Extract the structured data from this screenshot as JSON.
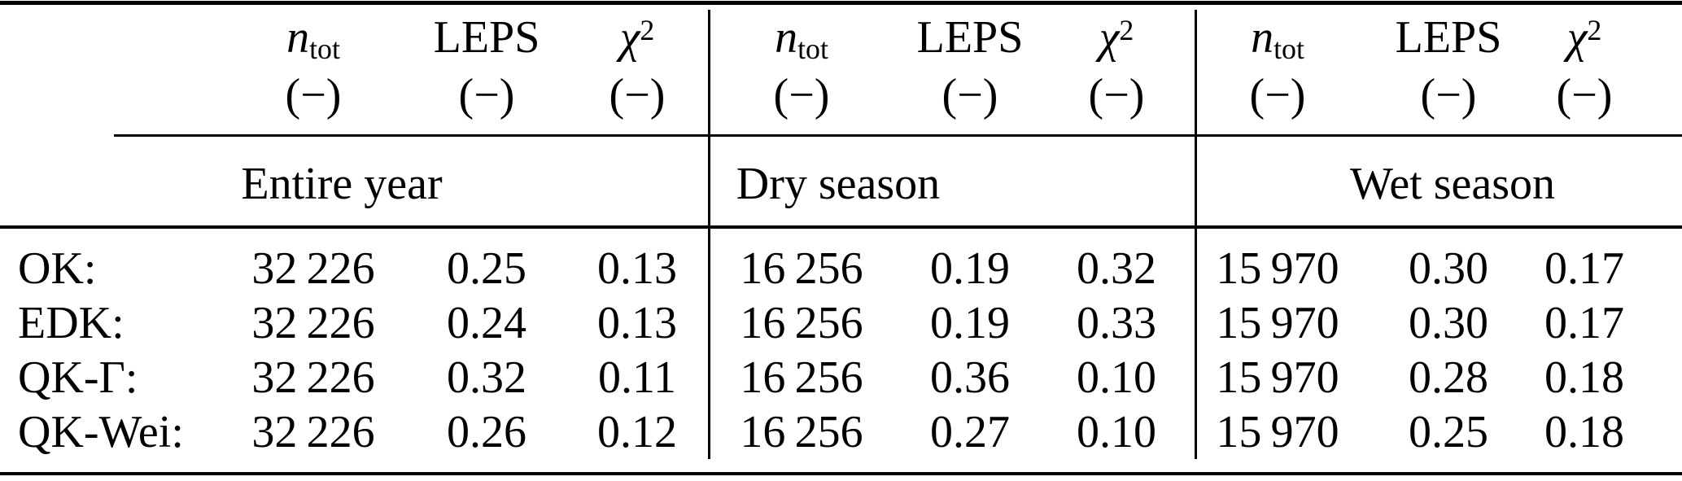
{
  "page": {
    "background": "#ffffff",
    "text_color": "#000000",
    "rule_color": "#000000"
  },
  "table": {
    "groups": [
      {
        "season": "Entire year",
        "cols": [
          {
            "base": "n",
            "sub": "tot",
            "unit": "(−)"
          },
          {
            "label": "LEPS",
            "unit": "(−)"
          },
          {
            "base": "χ",
            "sup": "2",
            "unit": "(−)"
          }
        ]
      },
      {
        "season": "Dry season",
        "cols": [
          {
            "base": "n",
            "sub": "tot",
            "unit": "(−)"
          },
          {
            "label": "LEPS",
            "unit": "(−)"
          },
          {
            "base": "χ",
            "sup": "2",
            "unit": "(−)"
          }
        ]
      },
      {
        "season": "Wet season",
        "cols": [
          {
            "base": "n",
            "sub": "tot",
            "unit": "(−)"
          },
          {
            "label": "LEPS",
            "unit": "(−)"
          },
          {
            "base": "χ",
            "sup": "2",
            "unit": "(−)"
          }
        ]
      }
    ],
    "rows": [
      {
        "label": "OK:",
        "values": [
          "32 226",
          "0.25",
          "0.13",
          "16 256",
          "0.19",
          "0.32",
          "15 970",
          "0.30",
          "0.17"
        ]
      },
      {
        "label": "EDK:",
        "values": [
          "32 226",
          "0.24",
          "0.13",
          "16 256",
          "0.19",
          "0.33",
          "15 970",
          "0.30",
          "0.17"
        ]
      },
      {
        "label": "QK-Γ:",
        "values": [
          "32 226",
          "0.32",
          "0.11",
          "16 256",
          "0.36",
          "0.10",
          "15 970",
          "0.28",
          "0.18"
        ]
      },
      {
        "label": "QK-Wei:",
        "values": [
          "32 226",
          "0.26",
          "0.12",
          "16 256",
          "0.27",
          "0.10",
          "15 970",
          "0.25",
          "0.18"
        ]
      }
    ]
  }
}
